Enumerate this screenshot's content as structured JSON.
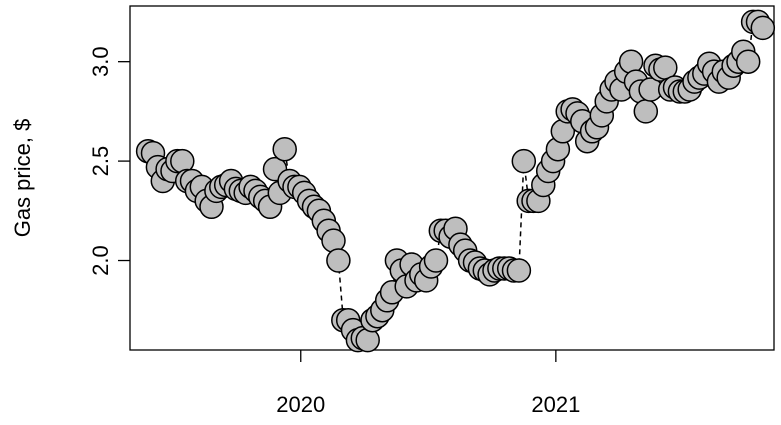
{
  "chart_data": {
    "type": "scatter",
    "title": "",
    "xlabel": "",
    "ylabel": "Gas price, $",
    "x_axis": {
      "ticks": [
        "2020",
        "2021"
      ],
      "tick_dates": [
        "2020-01-01",
        "2021-01-01"
      ],
      "range": [
        "2019-05-01",
        "2021-11-10"
      ]
    },
    "y_axis": {
      "ticks": [
        "2.0",
        "2.5",
        "3.0"
      ],
      "tick_values": [
        2.0,
        2.5,
        3.0
      ],
      "range": [
        1.55,
        3.28
      ]
    },
    "grid": false,
    "legend": "none",
    "marker": {
      "shape": "circle",
      "fill": "#bebebe",
      "stroke": "#000000"
    },
    "line": {
      "style": "dashed",
      "color": "#000000"
    },
    "series": [
      {
        "x": [
          "2019-05-27",
          "2019-06-03",
          "2019-06-10",
          "2019-06-17",
          "2019-06-24",
          "2019-07-01",
          "2019-07-08",
          "2019-07-15",
          "2019-07-22",
          "2019-07-29",
          "2019-08-05",
          "2019-08-12",
          "2019-08-19",
          "2019-08-26",
          "2019-09-02",
          "2019-09-09",
          "2019-09-16",
          "2019-09-23",
          "2019-09-30",
          "2019-10-07",
          "2019-10-14",
          "2019-10-21",
          "2019-10-28",
          "2019-11-04",
          "2019-11-11",
          "2019-11-18",
          "2019-11-25",
          "2019-12-02",
          "2019-12-09",
          "2019-12-16",
          "2019-12-23",
          "2019-12-30",
          "2020-01-06",
          "2020-01-13",
          "2020-01-20",
          "2020-01-27",
          "2020-02-03",
          "2020-02-10",
          "2020-02-17",
          "2020-02-24",
          "2020-03-02",
          "2020-03-09",
          "2020-03-16",
          "2020-03-23",
          "2020-03-30",
          "2020-04-06",
          "2020-04-13",
          "2020-04-20",
          "2020-04-27",
          "2020-05-04",
          "2020-05-11",
          "2020-05-18",
          "2020-05-25",
          "2020-06-01",
          "2020-06-08",
          "2020-06-15",
          "2020-06-22",
          "2020-06-29",
          "2020-07-06",
          "2020-07-13",
          "2020-07-20",
          "2020-07-27",
          "2020-08-03",
          "2020-08-10",
          "2020-08-17",
          "2020-08-24",
          "2020-08-31",
          "2020-09-07",
          "2020-09-14",
          "2020-09-21",
          "2020-09-28",
          "2020-10-05",
          "2020-10-12",
          "2020-10-19",
          "2020-10-26",
          "2020-11-02",
          "2020-11-09",
          "2020-11-16",
          "2020-11-23",
          "2020-11-30",
          "2020-12-07",
          "2020-12-14",
          "2020-12-21",
          "2020-12-28",
          "2021-01-04",
          "2021-01-11",
          "2021-01-18",
          "2021-01-25",
          "2021-02-01",
          "2021-02-08",
          "2021-02-15",
          "2021-02-22",
          "2021-03-01",
          "2021-03-08",
          "2021-03-15",
          "2021-03-22",
          "2021-03-29",
          "2021-04-05",
          "2021-04-12",
          "2021-04-19",
          "2021-04-26",
          "2021-05-03",
          "2021-05-10",
          "2021-05-17",
          "2021-05-24",
          "2021-05-31",
          "2021-06-07",
          "2021-06-14",
          "2021-06-21",
          "2021-06-28",
          "2021-07-05",
          "2021-07-12",
          "2021-07-19",
          "2021-07-26",
          "2021-08-02",
          "2021-08-09",
          "2021-08-16",
          "2021-08-23",
          "2021-08-30",
          "2021-09-06",
          "2021-09-13",
          "2021-09-20",
          "2021-09-27",
          "2021-10-04",
          "2021-10-11",
          "2021-10-18",
          "2021-10-25"
        ],
        "y": [
          2.55,
          2.54,
          2.47,
          2.4,
          2.46,
          2.45,
          2.5,
          2.5,
          2.4,
          2.4,
          2.35,
          2.37,
          2.3,
          2.27,
          2.35,
          2.37,
          2.38,
          2.4,
          2.36,
          2.35,
          2.34,
          2.37,
          2.35,
          2.32,
          2.3,
          2.27,
          2.46,
          2.34,
          2.56,
          2.4,
          2.37,
          2.37,
          2.34,
          2.3,
          2.27,
          2.25,
          2.2,
          2.15,
          2.1,
          2.0,
          1.7,
          1.7,
          1.65,
          1.6,
          1.61,
          1.6,
          1.7,
          1.72,
          1.75,
          1.8,
          1.84,
          2.0,
          1.95,
          1.87,
          1.98,
          1.9,
          1.93,
          1.9,
          1.97,
          2.0,
          2.15,
          2.15,
          2.12,
          2.16,
          2.08,
          2.05,
          2.0,
          1.99,
          1.96,
          1.95,
          1.93,
          1.95,
          1.96,
          1.96,
          1.96,
          1.95,
          1.95,
          2.5,
          2.3,
          2.3,
          2.3,
          2.38,
          2.45,
          2.5,
          2.56,
          2.65,
          2.75,
          2.76,
          2.74,
          2.7,
          2.6,
          2.65,
          2.67,
          2.73,
          2.8,
          2.86,
          2.9,
          2.86,
          2.95,
          3.0,
          2.9,
          2.85,
          2.75,
          2.86,
          2.98,
          2.96,
          2.97,
          2.86,
          2.87,
          2.85,
          2.85,
          2.86,
          2.9,
          2.92,
          2.94,
          2.99,
          2.95,
          2.9,
          2.95,
          2.92,
          2.98,
          3.0,
          3.05,
          3.0,
          3.2,
          3.2,
          3.17
        ]
      }
    ]
  }
}
